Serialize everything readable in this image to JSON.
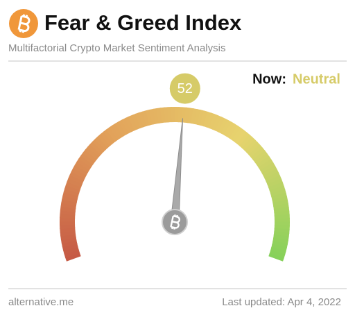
{
  "chart_data": {
    "type": "gauge",
    "title": "Fear & Greed Index",
    "subtitle": "Multifactorial Crypto Market Sentiment Analysis",
    "now_label": "Now:",
    "classification": "Neutral",
    "value": 52,
    "value_color": "#d6cb68",
    "ylim": [
      0,
      100
    ],
    "gauge_colors": [
      "#c65a45",
      "#e2a25a",
      "#e7d36e",
      "#84d159"
    ],
    "source": "alternative.me",
    "updated": "Last updated: Apr 4, 2022"
  }
}
